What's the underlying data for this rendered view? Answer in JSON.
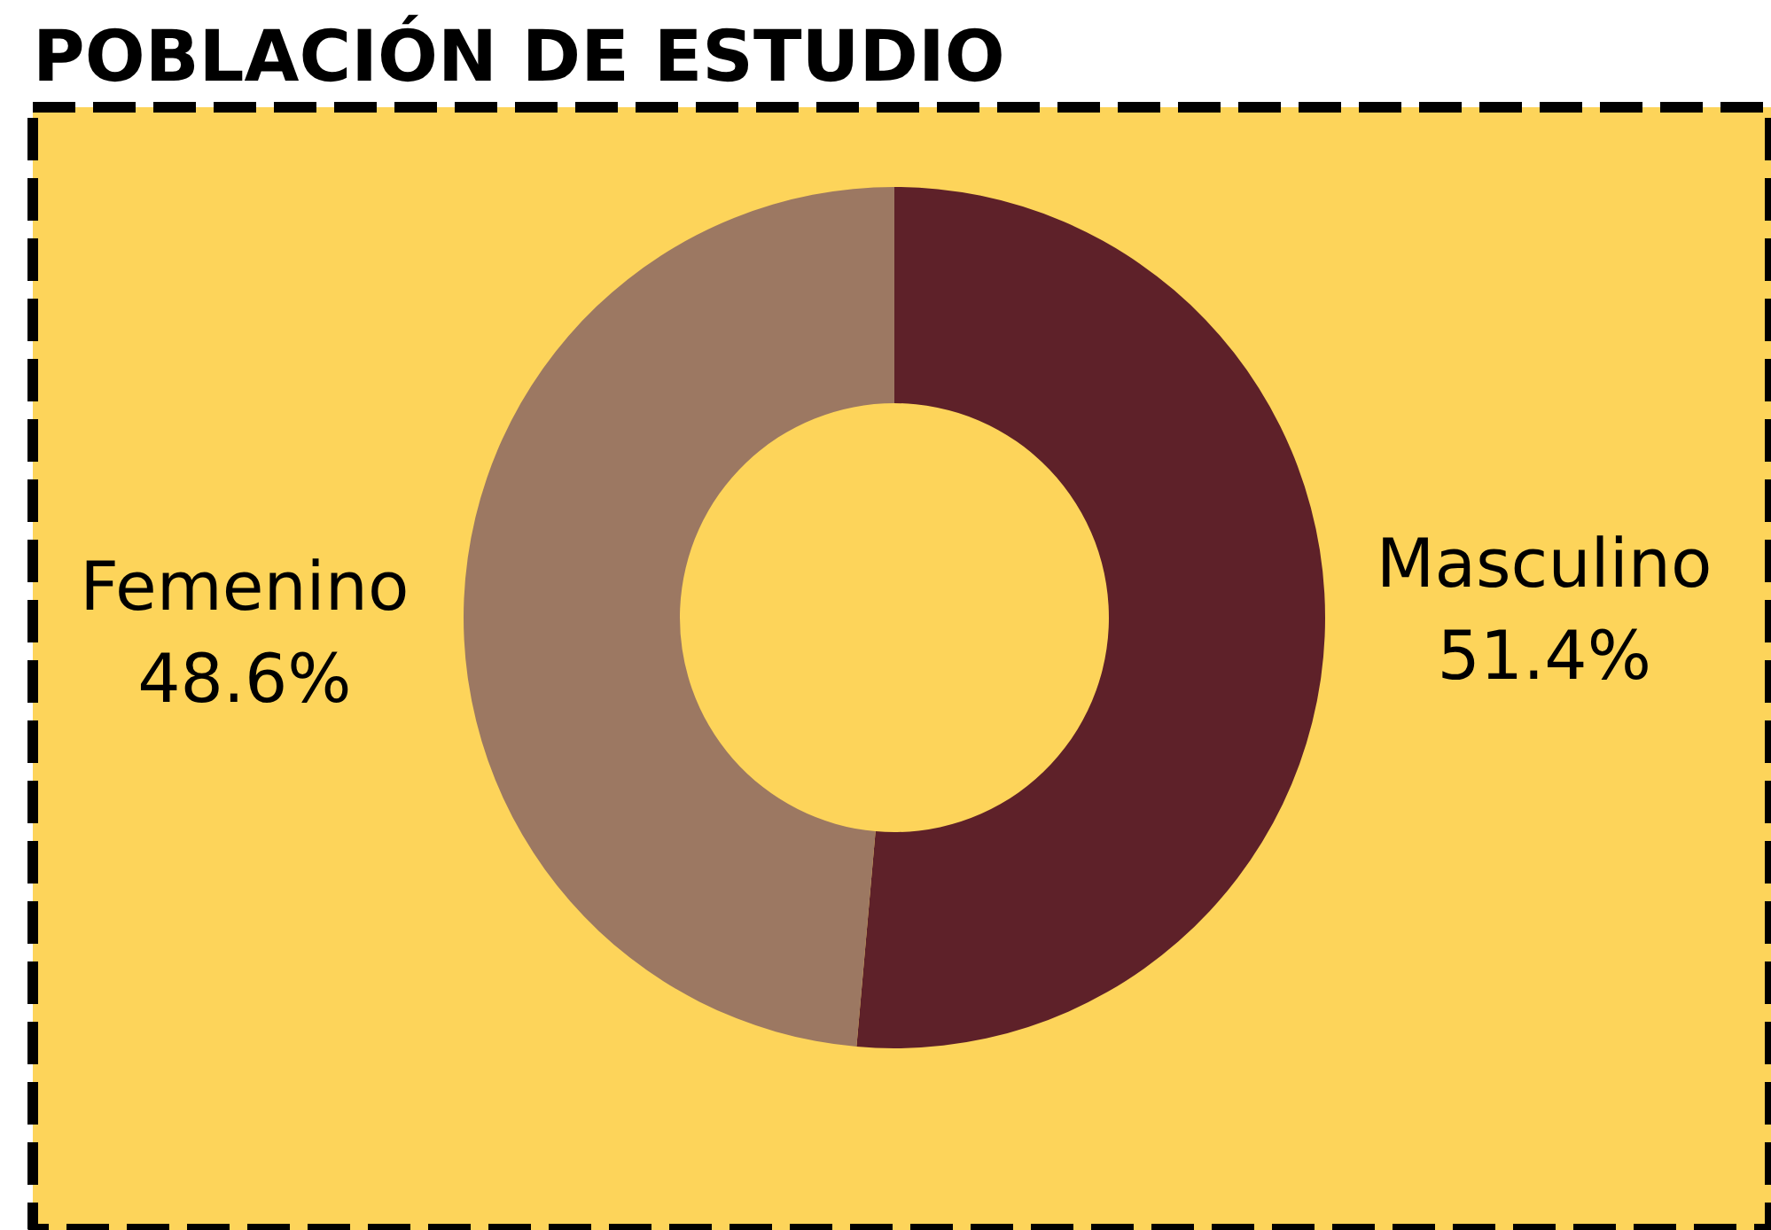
{
  "chart_data": {
    "type": "donut",
    "title": "POBLACIÓN DE ESTUDIO",
    "categories": [
      "Masculino",
      "Femenino"
    ],
    "values": [
      51.4,
      48.6
    ],
    "colors": [
      "#5e2129",
      "#9c7862"
    ],
    "value_labels": [
      "51.4%",
      "48.6%"
    ]
  }
}
